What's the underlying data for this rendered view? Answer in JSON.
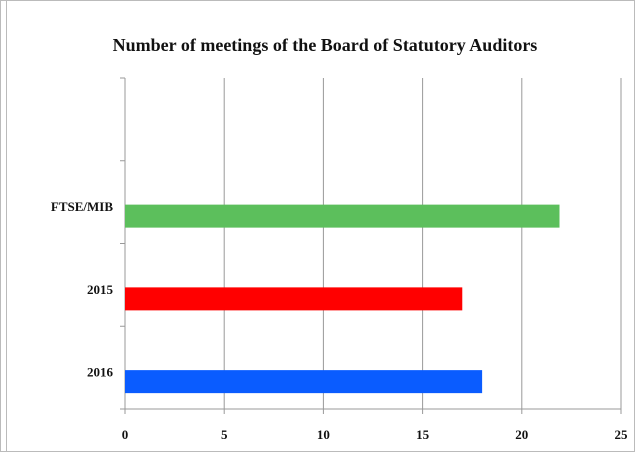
{
  "chart_data": {
    "type": "barh",
    "title": "Number of meetings of the Board of Statutory Auditors",
    "categories": [
      null,
      "FTSE/MIB",
      "2015",
      "2016"
    ],
    "values": [
      null,
      21.9,
      17,
      18
    ],
    "colors": [
      "#5cbf5c",
      "#5cbf5c",
      "#ff0000",
      "#0a5cff"
    ],
    "xlim": [
      0,
      25
    ],
    "xticks": [
      0,
      5,
      10,
      15,
      20,
      25
    ],
    "grid": true
  }
}
